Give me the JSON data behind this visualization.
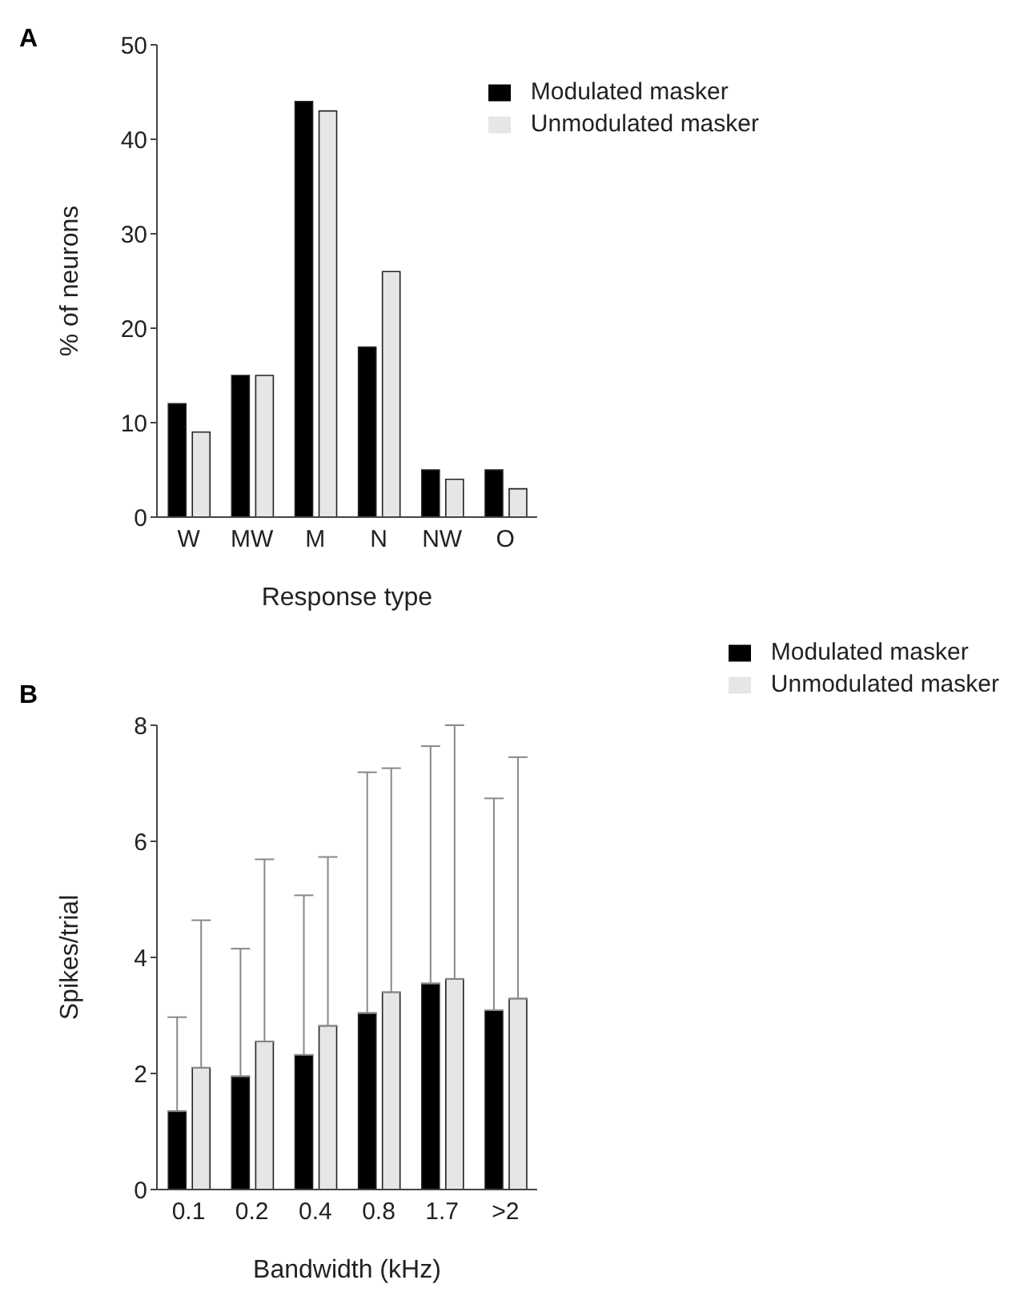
{
  "chart_data": [
    {
      "type": "bar",
      "title": "A",
      "xlabel": "Response type",
      "ylabel": "% of neurons",
      "categories": [
        "W",
        "MW",
        "M",
        "N",
        "NW",
        "O"
      ],
      "series": [
        {
          "name": "Modulated masker",
          "color": "#000000",
          "values": [
            12,
            15,
            44,
            18,
            5,
            5
          ]
        },
        {
          "name": "Unmodulated masker",
          "color": "#e6e6e6",
          "values": [
            9,
            15,
            43,
            26,
            4,
            3
          ]
        }
      ],
      "ylim": [
        0,
        50
      ],
      "yticks": [
        0,
        10,
        20,
        30,
        40,
        50
      ],
      "grid": false,
      "legend": "top right"
    },
    {
      "type": "bar",
      "title": "B",
      "xlabel": "Bandwidth (kHz)",
      "ylabel": "Spikes/trial",
      "categories": [
        "0.1",
        "0.2",
        "0.4",
        "0.8",
        "1.7",
        ">2"
      ],
      "series": [
        {
          "name": "Modulated masker",
          "color": "#000000",
          "values": [
            1.35,
            1.95,
            2.32,
            3.04,
            3.55,
            3.09
          ],
          "errors": [
            [
              1.35,
              2.97
            ],
            [
              1.95,
              4.15
            ],
            [
              2.32,
              5.07
            ],
            [
              3.04,
              7.19
            ],
            [
              3.55,
              7.64
            ],
            [
              3.09,
              6.74
            ]
          ]
        },
        {
          "name": "Unmodulated masker",
          "color": "#e6e6e6",
          "values": [
            2.1,
            2.55,
            2.82,
            3.4,
            3.63,
            3.29
          ],
          "errors": [
            [
              2.1,
              4.64
            ],
            [
              2.55,
              5.69
            ],
            [
              2.82,
              5.73
            ],
            [
              3.4,
              7.26
            ],
            [
              3.63,
              8.0
            ],
            [
              3.29,
              7.45
            ]
          ]
        }
      ],
      "ylim": [
        0,
        8
      ],
      "yticks": [
        0,
        2,
        4,
        6,
        8
      ],
      "grid": false,
      "legend": "top right"
    }
  ]
}
